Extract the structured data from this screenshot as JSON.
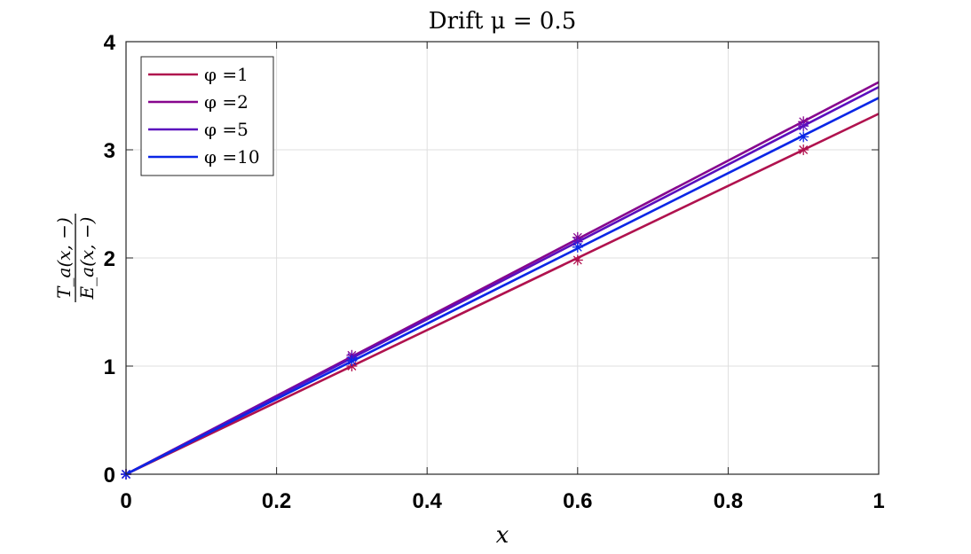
{
  "chart_data": {
    "type": "line",
    "title": "Drift μ = 0.5",
    "xlabel": "x",
    "ylabel": {
      "numerator": "T_a(x, −)",
      "denominator": "E_a(x, −)"
    },
    "xlim": [
      0,
      1
    ],
    "ylim": [
      0,
      4
    ],
    "xticks": [
      0,
      0.2,
      0.4,
      0.6,
      0.8,
      1
    ],
    "xtick_labels": [
      "0",
      "0.2",
      "0.4",
      "0.6",
      "0.8",
      "1"
    ],
    "yticks": [
      0,
      1,
      2,
      3,
      4
    ],
    "ytick_labels": [
      "0",
      "1",
      "2",
      "3",
      "4"
    ],
    "grid": true,
    "legend_position": "top-left",
    "series": [
      {
        "name": "φ =1",
        "color": "#b0124e",
        "line": {
          "x": [
            0,
            1
          ],
          "y": [
            0,
            3.333
          ]
        },
        "markers": {
          "x": [
            0,
            0.3,
            0.6,
            0.9
          ],
          "y": [
            0,
            1.0,
            1.98,
            3.0
          ]
        }
      },
      {
        "name": "φ =2",
        "color": "#87068e",
        "line": {
          "x": [
            0,
            1
          ],
          "y": [
            0,
            3.625
          ]
        },
        "markers": {
          "x": [
            0,
            0.3,
            0.6,
            0.9
          ],
          "y": [
            0,
            1.1,
            2.19,
            3.26
          ]
        }
      },
      {
        "name": "φ =5",
        "color": "#5a0fbe",
        "line": {
          "x": [
            0,
            1
          ],
          "y": [
            0,
            3.58
          ]
        },
        "markers": {
          "x": [
            0,
            0.3,
            0.6,
            0.9
          ],
          "y": [
            0,
            1.08,
            2.15,
            3.22
          ]
        }
      },
      {
        "name": "φ =10",
        "color": "#0a26e6",
        "line": {
          "x": [
            0,
            1
          ],
          "y": [
            0,
            3.48
          ]
        },
        "markers": {
          "x": [
            0,
            0.3,
            0.6,
            0.9
          ],
          "y": [
            0,
            1.05,
            2.1,
            3.12
          ]
        }
      }
    ]
  }
}
